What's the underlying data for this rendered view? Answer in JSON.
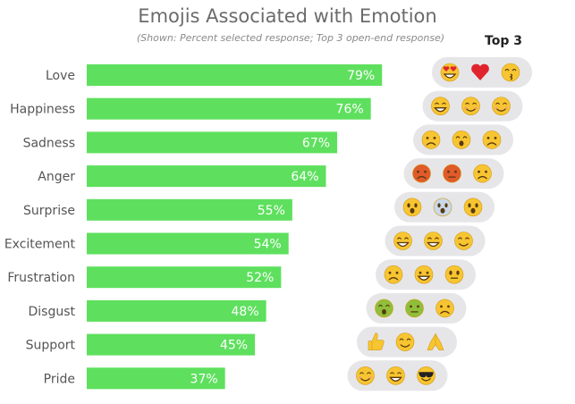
{
  "chart_data": {
    "type": "bar",
    "orientation": "horizontal",
    "title": "Emojis Associated with Emotion",
    "subtitle": "(Shown: Percent selected response; Top 3 open-end response)",
    "categories": [
      "Love",
      "Happiness",
      "Sadness",
      "Anger",
      "Surprise",
      "Excitement",
      "Frustration",
      "Disgust",
      "Support",
      "Pride"
    ],
    "values": [
      79,
      76,
      67,
      64,
      55,
      54,
      52,
      48,
      45,
      37
    ],
    "value_labels": [
      "79%",
      "76%",
      "67%",
      "64%",
      "55%",
      "54%",
      "52%",
      "48%",
      "45%",
      "37%"
    ],
    "xlim": [
      0,
      100
    ],
    "grid": false,
    "legend": "none",
    "bar_color": "#5ee05e",
    "annotation_header": "Top 3",
    "top3_emojis": [
      [
        "heart-eyes",
        "red-heart",
        "kissing-face"
      ],
      [
        "grinning-face",
        "smiling-face",
        "blushing-face"
      ],
      [
        "crying-face",
        "loudly-crying-face",
        "frowning-face"
      ],
      [
        "angry-red-face",
        "swearing-face",
        "angry-face"
      ],
      [
        "hushed-face",
        "screaming-face",
        "astonished-face"
      ],
      [
        "grinning-face",
        "beaming-face",
        "hugging-face"
      ],
      [
        "angry-face",
        "steam-nose-face",
        "eye-roll-face"
      ],
      [
        "vomiting-face",
        "nauseated-face",
        "unamused-face"
      ],
      [
        "thumbs-up",
        "hugging-face",
        "folded-hands"
      ],
      [
        "blushing-face",
        "grinning-face",
        "sunglasses-face"
      ]
    ]
  },
  "colors": {
    "bar": "#5ee05e",
    "bubble": "#e6e6e9",
    "emoji_face": "#f7c531",
    "emoji_angry": "#e05a2a",
    "heart": "#e0242e",
    "nauseated": "#8fbf3a"
  }
}
